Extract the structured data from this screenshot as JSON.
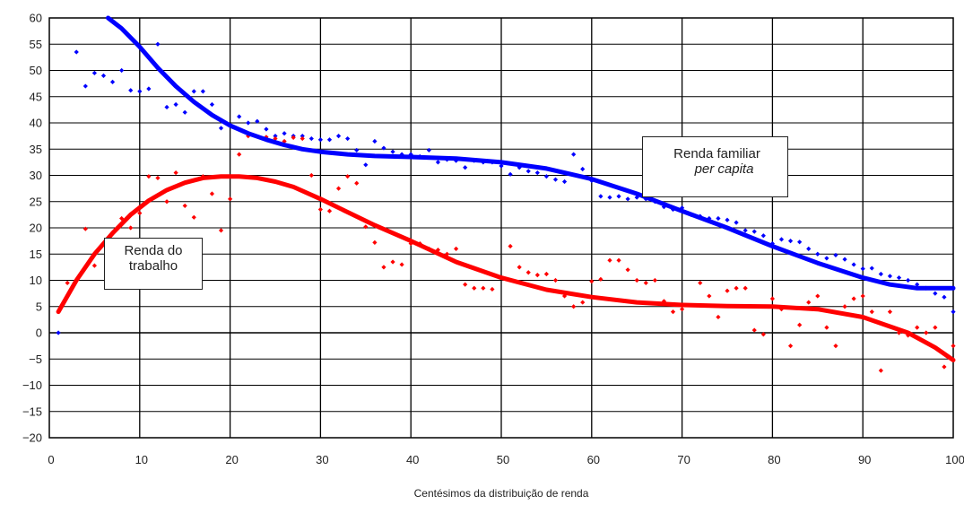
{
  "chart_data": {
    "type": "scatter",
    "xlabel": "Centésimos da distribuição de renda",
    "ylabel": "",
    "xlim": [
      0,
      100
    ],
    "ylim": [
      -20,
      60
    ],
    "x_ticks": [
      0,
      10,
      20,
      30,
      40,
      50,
      60,
      70,
      80,
      90,
      100
    ],
    "y_ticks": [
      -20,
      -15,
      -10,
      -5,
      0,
      5,
      10,
      15,
      20,
      25,
      30,
      35,
      40,
      45,
      50,
      55,
      60
    ],
    "x_tick_labels": [
      "0",
      "10",
      "20",
      "30",
      "40",
      "50",
      "60",
      "70",
      "80",
      "90",
      "100"
    ],
    "y_tick_labels": [
      "−20",
      "−15",
      "−10",
      "−5",
      "0",
      "5",
      "10",
      "15",
      "20",
      "25",
      "30",
      "35",
      "40",
      "45",
      "50",
      "55",
      "60"
    ],
    "grid": "on",
    "background": "#ffffff",
    "annotations": [
      {
        "lines": [
          "Renda familiar",
          "per capita"
        ],
        "italic_line": 1
      },
      {
        "lines": [
          "Renda do",
          "trabalho"
        ]
      }
    ],
    "series": [
      {
        "color": "#0000ff",
        "marker": "diamond",
        "points": [
          [
            1,
            0
          ],
          [
            3,
            53.5
          ],
          [
            4,
            47
          ],
          [
            5,
            49.5
          ],
          [
            6,
            49
          ],
          [
            7,
            47.8
          ],
          [
            8,
            50
          ],
          [
            9,
            46.2
          ],
          [
            10,
            46
          ],
          [
            11,
            46.5
          ],
          [
            12,
            55
          ],
          [
            13,
            43
          ],
          [
            14,
            43.5
          ],
          [
            15,
            42
          ],
          [
            16,
            46
          ],
          [
            17,
            46
          ],
          [
            18,
            43.5
          ],
          [
            19,
            39
          ],
          [
            20,
            39.5
          ],
          [
            21,
            41.2
          ],
          [
            22,
            40
          ],
          [
            23,
            40.3
          ],
          [
            24,
            38.8
          ],
          [
            25,
            37.5
          ],
          [
            26,
            38
          ],
          [
            27,
            37.5
          ],
          [
            28,
            37.5
          ],
          [
            29,
            37
          ],
          [
            30,
            36.8
          ],
          [
            31,
            36.8
          ],
          [
            32,
            37.5
          ],
          [
            33,
            37
          ],
          [
            34,
            34.8
          ],
          [
            35,
            32
          ],
          [
            36,
            36.5
          ],
          [
            37,
            35.2
          ],
          [
            38,
            34.5
          ],
          [
            39,
            34
          ],
          [
            40,
            34
          ],
          [
            41,
            33.6
          ],
          [
            42,
            34.8
          ],
          [
            43,
            32.5
          ],
          [
            44,
            33
          ],
          [
            45,
            32.8
          ],
          [
            46,
            31.5
          ],
          [
            47,
            32.8
          ],
          [
            48,
            32.5
          ],
          [
            49,
            32.5
          ],
          [
            50,
            31.8
          ],
          [
            51,
            30.2
          ],
          [
            52,
            31.5
          ],
          [
            53,
            30.8
          ],
          [
            54,
            30.5
          ],
          [
            55,
            29.8
          ],
          [
            56,
            29.2
          ],
          [
            57,
            28.8
          ],
          [
            58,
            34
          ],
          [
            59,
            31.2
          ],
          [
            60,
            29
          ],
          [
            61,
            26
          ],
          [
            62,
            25.8
          ],
          [
            63,
            26
          ],
          [
            64,
            25.5
          ],
          [
            65,
            25.8
          ],
          [
            66,
            25.5
          ],
          [
            67,
            25
          ],
          [
            68,
            24
          ],
          [
            69,
            23.5
          ],
          [
            70,
            23.8
          ],
          [
            71,
            22.5
          ],
          [
            72,
            22.2
          ],
          [
            73,
            21.8
          ],
          [
            74,
            21.8
          ],
          [
            75,
            21.5
          ],
          [
            76,
            21
          ],
          [
            77,
            19.5
          ],
          [
            78,
            19.3
          ],
          [
            79,
            18.5
          ],
          [
            80,
            17
          ],
          [
            81,
            17.8
          ],
          [
            82,
            17.5
          ],
          [
            83,
            17.3
          ],
          [
            84,
            16
          ],
          [
            85,
            15
          ],
          [
            86,
            14.2
          ],
          [
            87,
            14.8
          ],
          [
            88,
            14
          ],
          [
            89,
            13
          ],
          [
            90,
            12.2
          ],
          [
            91,
            12.3
          ],
          [
            92,
            11.2
          ],
          [
            93,
            10.8
          ],
          [
            94,
            10.5
          ],
          [
            95,
            10
          ],
          [
            96,
            9.2
          ],
          [
            97,
            8.5
          ],
          [
            98,
            7.5
          ],
          [
            99,
            6.8
          ],
          [
            100,
            4
          ]
        ]
      },
      {
        "color": "#ff0000",
        "marker": "diamond",
        "points": [
          [
            2,
            9.5
          ],
          [
            4,
            19.8
          ],
          [
            5,
            12.8
          ],
          [
            6,
            16.8
          ],
          [
            7,
            17
          ],
          [
            8,
            21.8
          ],
          [
            9,
            20
          ],
          [
            10,
            22.8
          ],
          [
            11,
            29.8
          ],
          [
            12,
            29.5
          ],
          [
            13,
            25
          ],
          [
            14,
            30.5
          ],
          [
            15,
            24.2
          ],
          [
            16,
            22
          ],
          [
            17,
            29.8
          ],
          [
            18,
            26.5
          ],
          [
            19,
            19.5
          ],
          [
            20,
            25.5
          ],
          [
            21,
            34
          ],
          [
            22,
            37.5
          ],
          [
            24,
            37.3
          ],
          [
            25,
            37
          ],
          [
            26,
            36.5
          ],
          [
            27,
            37.2
          ],
          [
            28,
            37
          ],
          [
            29,
            30
          ],
          [
            30,
            23.5
          ],
          [
            31,
            23.2
          ],
          [
            32,
            27.5
          ],
          [
            33,
            29.8
          ],
          [
            34,
            28.5
          ],
          [
            35,
            20.2
          ],
          [
            36,
            17.2
          ],
          [
            37,
            12.5
          ],
          [
            38,
            13.5
          ],
          [
            39,
            13
          ],
          [
            40,
            17
          ],
          [
            41,
            17
          ],
          [
            42,
            16
          ],
          [
            43,
            15.8
          ],
          [
            44,
            15
          ],
          [
            45,
            16
          ],
          [
            46,
            9.2
          ],
          [
            47,
            8.5
          ],
          [
            48,
            8.5
          ],
          [
            49,
            8.3
          ],
          [
            51,
            16.5
          ],
          [
            52,
            12.5
          ],
          [
            53,
            11.5
          ],
          [
            54,
            11
          ],
          [
            55,
            11.2
          ],
          [
            56,
            10
          ],
          [
            57,
            7
          ],
          [
            58,
            5
          ],
          [
            59,
            5.8
          ],
          [
            60,
            9.8
          ],
          [
            61,
            10.2
          ],
          [
            62,
            13.8
          ],
          [
            63,
            13.8
          ],
          [
            64,
            12
          ],
          [
            65,
            10
          ],
          [
            66,
            9.5
          ],
          [
            67,
            10
          ],
          [
            68,
            6
          ],
          [
            69,
            4
          ],
          [
            70,
            4.5
          ],
          [
            72,
            9.5
          ],
          [
            73,
            7
          ],
          [
            74,
            3
          ],
          [
            75,
            8
          ],
          [
            76,
            8.5
          ],
          [
            77,
            8.5
          ],
          [
            78,
            0.5
          ],
          [
            79,
            -0.3
          ],
          [
            80,
            6.5
          ],
          [
            81,
            4.5
          ],
          [
            82,
            -2.5
          ],
          [
            83,
            1.5
          ],
          [
            84,
            5.8
          ],
          [
            85,
            7
          ],
          [
            86,
            1
          ],
          [
            87,
            -2.5
          ],
          [
            88,
            5
          ],
          [
            89,
            6.5
          ],
          [
            90,
            7
          ],
          [
            91,
            4
          ],
          [
            92,
            -7.2
          ],
          [
            93,
            4
          ],
          [
            94,
            0
          ],
          [
            95,
            -0.5
          ],
          [
            96,
            1
          ],
          [
            97,
            0
          ],
          [
            98,
            1
          ],
          [
            99,
            -6.5
          ],
          [
            100,
            -2.5
          ]
        ]
      }
    ],
    "trendlines": [
      {
        "color": "#0000ff",
        "points": [
          [
            6.5,
            60
          ],
          [
            8,
            58
          ],
          [
            10,
            54.5
          ],
          [
            12,
            50.5
          ],
          [
            14,
            47
          ],
          [
            16,
            44
          ],
          [
            18,
            41.5
          ],
          [
            20,
            39.5
          ],
          [
            22,
            38
          ],
          [
            24,
            36.8
          ],
          [
            26,
            35.8
          ],
          [
            28,
            35
          ],
          [
            30,
            34.5
          ],
          [
            33,
            34
          ],
          [
            36,
            33.7
          ],
          [
            40,
            33.5
          ],
          [
            45,
            33.2
          ],
          [
            50,
            32.5
          ],
          [
            55,
            31.3
          ],
          [
            60,
            29.3
          ],
          [
            65,
            26.5
          ],
          [
            70,
            23.2
          ],
          [
            75,
            20
          ],
          [
            80,
            16.5
          ],
          [
            85,
            13.3
          ],
          [
            90,
            10.5
          ],
          [
            93,
            9.2
          ],
          [
            96,
            8.5
          ],
          [
            100,
            8.5
          ]
        ]
      },
      {
        "color": "#ff0000",
        "points": [
          [
            1,
            4
          ],
          [
            3,
            10
          ],
          [
            5,
            15
          ],
          [
            7,
            19
          ],
          [
            9,
            22.5
          ],
          [
            11,
            25.2
          ],
          [
            13,
            27.2
          ],
          [
            15,
            28.6
          ],
          [
            17,
            29.5
          ],
          [
            19,
            29.8
          ],
          [
            21,
            29.8
          ],
          [
            23,
            29.5
          ],
          [
            25,
            28.8
          ],
          [
            27,
            27.8
          ],
          [
            30,
            25.5
          ],
          [
            33,
            23
          ],
          [
            36,
            20.5
          ],
          [
            40,
            17.5
          ],
          [
            45,
            13.5
          ],
          [
            50,
            10.5
          ],
          [
            55,
            8.2
          ],
          [
            60,
            6.8
          ],
          [
            65,
            5.8
          ],
          [
            70,
            5.3
          ],
          [
            75,
            5.1
          ],
          [
            80,
            5
          ],
          [
            85,
            4.5
          ],
          [
            90,
            3
          ],
          [
            95,
            0
          ],
          [
            98,
            -2.8
          ],
          [
            100,
            -5.2
          ]
        ]
      }
    ]
  }
}
